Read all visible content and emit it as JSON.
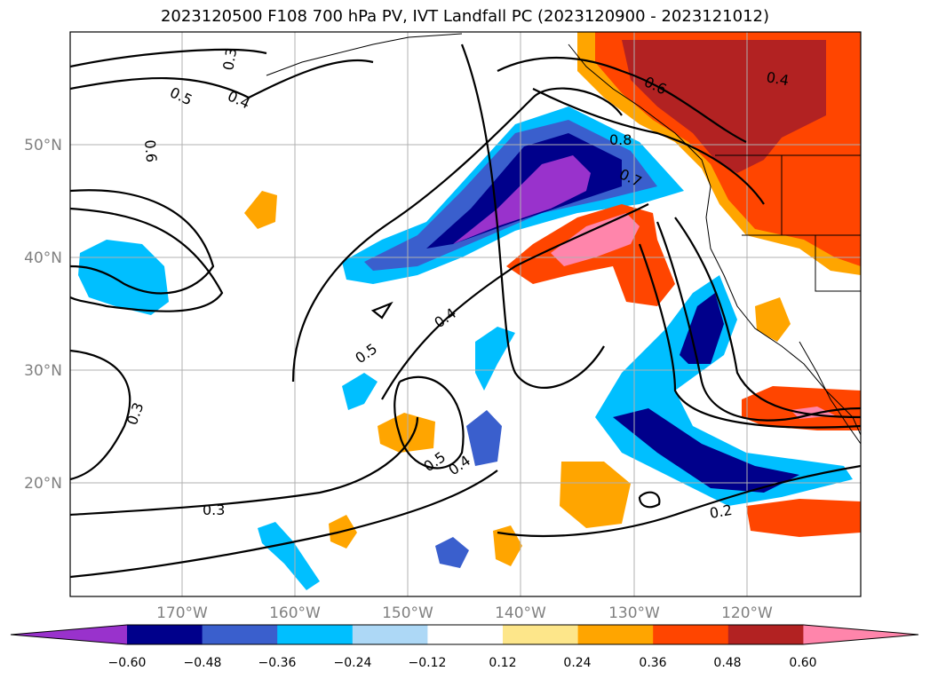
{
  "title": "2023120500 F108 700 hPa PV, IVT Landfall PC (2023120900 - 2023121012)",
  "axes": {
    "lat_labels": [
      "20°N",
      "30°N",
      "40°N",
      "50°N"
    ],
    "lon_labels": [
      "170°W",
      "160°W",
      "150°W",
      "140°W",
      "130°W",
      "120°W"
    ]
  },
  "contour_labels": [
    "0.3",
    "0.5",
    "0.4",
    "0.6",
    "0.8",
    "0.7",
    "0.6",
    "0.4",
    "0.4",
    "0.5",
    "0.5",
    "0.4",
    "0.3",
    "0.3",
    "0.2"
  ],
  "colorbar": {
    "ticks": [
      "−0.60",
      "−0.48",
      "−0.36",
      "−0.24",
      "−0.12",
      "0.12",
      "0.24",
      "0.36",
      "0.48",
      "0.60"
    ],
    "colors": [
      "#9932cc",
      "#00008b",
      "#3a5fcd",
      "#00bfff",
      "#add8f6",
      "#ffffff",
      "#fde68a",
      "#ffa500",
      "#ff4500",
      "#b22222",
      "#ff85ab"
    ]
  }
}
